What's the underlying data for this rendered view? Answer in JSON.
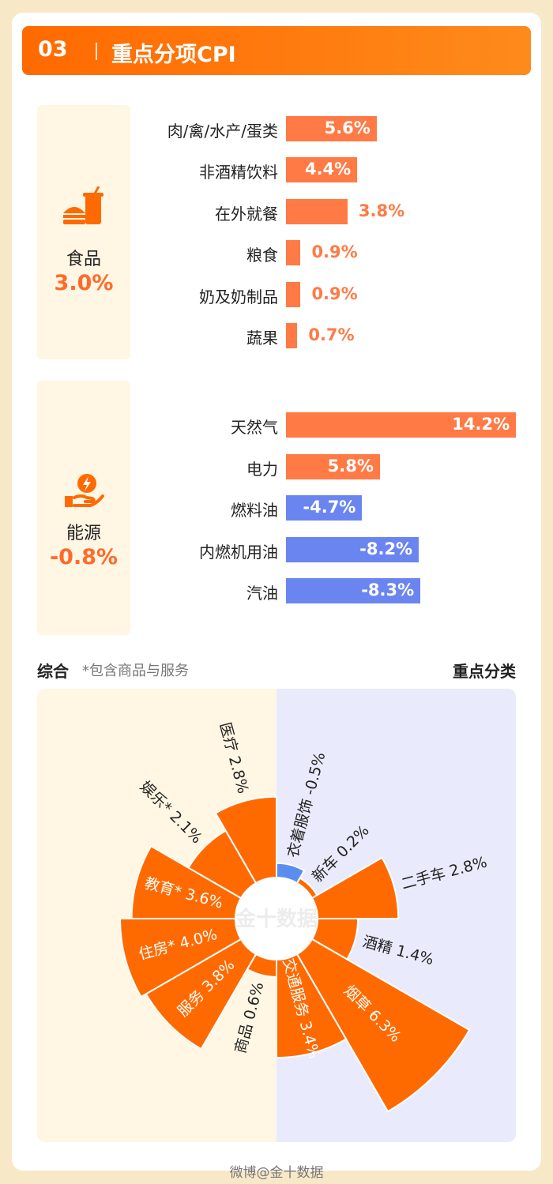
{
  "header": {
    "num": "03",
    "title": "重点分项CPI"
  },
  "food": {
    "name": "食品",
    "value": "3.0%",
    "icon": "burger-drink-icon",
    "items": [
      {
        "label": "肉/禽/水产/蛋类",
        "value": 5.6,
        "text": "5.6%"
      },
      {
        "label": "非酒精饮料",
        "value": 4.4,
        "text": "4.4%"
      },
      {
        "label": "在外就餐",
        "value": 3.8,
        "text": "3.8%"
      },
      {
        "label": "粮食",
        "value": 0.9,
        "text": "0.9%"
      },
      {
        "label": "奶及奶制品",
        "value": 0.9,
        "text": "0.9%"
      },
      {
        "label": "蔬果",
        "value": 0.7,
        "text": "0.7%"
      }
    ]
  },
  "energy": {
    "name": "能源",
    "value": "-0.8%",
    "icon": "hand-energy-icon",
    "items": [
      {
        "label": "天然气",
        "value": 14.2,
        "text": "14.2%"
      },
      {
        "label": "电力",
        "value": 5.8,
        "text": "5.8%"
      },
      {
        "label": "燃料油",
        "value": -4.7,
        "text": "-4.7%"
      },
      {
        "label": "内燃机用油",
        "value": -8.2,
        "text": "-8.2%"
      },
      {
        "label": "汽油",
        "value": -8.3,
        "text": "-8.3%"
      }
    ]
  },
  "section": {
    "left": "综合",
    "note": "*包含商品与服务",
    "right": "重点分类"
  },
  "chart_data": {
    "type": "bar",
    "categories": [
      "肉/禽/水产/蛋类",
      "非酒精饮料",
      "在外就餐",
      "粮食",
      "奶及奶制品",
      "蔬果",
      "天然气",
      "电力",
      "燃料油",
      "内燃机用油",
      "汽油"
    ],
    "values": [
      5.6,
      4.4,
      3.8,
      0.9,
      0.9,
      0.7,
      14.2,
      5.8,
      -4.7,
      -8.2,
      -8.3
    ],
    "radial": {
      "type": "pie",
      "left": [
        {
          "label": "商品",
          "value": 0.6,
          "text": "商品 0.6%"
        },
        {
          "label": "服务",
          "value": 3.8,
          "text": "服务 3.8%"
        },
        {
          "label": "住房*",
          "value": 4.0,
          "text": "住房* 4.0%"
        },
        {
          "label": "教育*",
          "value": 3.6,
          "text": "教育* 3.6%"
        },
        {
          "label": "娱乐*",
          "value": 2.1,
          "text": "娱乐* 2.1%"
        },
        {
          "label": "医疗",
          "value": 2.8,
          "text": "医疗 2.8%"
        }
      ],
      "right": [
        {
          "label": "衣着服饰",
          "value": -0.5,
          "text": "衣着服饰 -0.5%"
        },
        {
          "label": "新车",
          "value": 0.2,
          "text": "新车 0.2%"
        },
        {
          "label": "二手车",
          "value": 2.8,
          "text": "二手车 2.8%"
        },
        {
          "label": "酒精",
          "value": 1.4,
          "text": "酒精 1.4%"
        },
        {
          "label": "烟草",
          "value": 6.3,
          "text": "烟草 6.3%"
        },
        {
          "label": "交通服务",
          "value": 3.4,
          "text": "交通服务 3.4%"
        }
      ]
    }
  },
  "colors": {
    "positive": "#ff7a45",
    "negative": "#6b85f0",
    "wedge": "#ff6a00",
    "wedge_neg": "#5b8def",
    "left_bg": "#fff6e3",
    "right_bg": "#e9ebfc"
  },
  "watermark": "金十数据",
  "footer": "微博@金十数据"
}
